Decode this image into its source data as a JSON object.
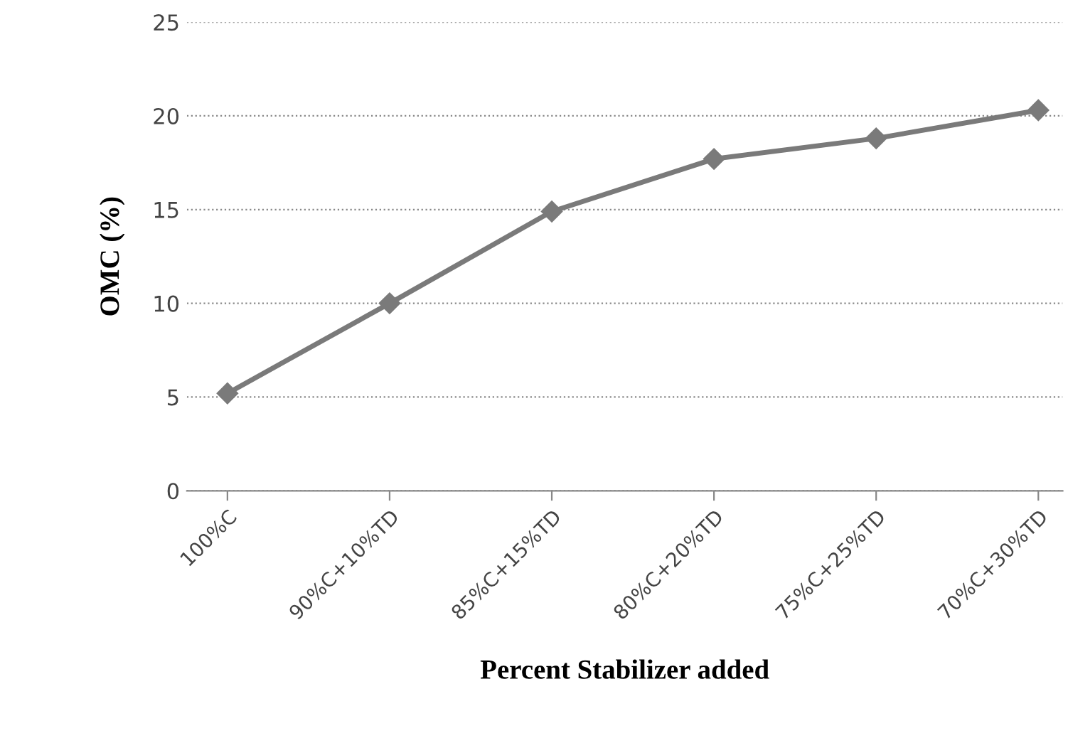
{
  "chart_data": {
    "type": "line",
    "xlabel": "Percent Stabilizer added",
    "ylabel": "OMC (%)",
    "categories": [
      "100%C",
      "90%C+10%TD",
      "85%C+15%TD",
      "80%C+20%TD",
      "75%C+25%TD",
      "70%C+30%TD"
    ],
    "series": [
      {
        "color": "#7a7a7a",
        "values": [
          5.2,
          10.0,
          14.9,
          17.7,
          18.8,
          20.3
        ]
      }
    ],
    "ylim": [
      0,
      25
    ],
    "yticks": [
      0,
      5,
      10,
      15,
      20,
      25
    ],
    "grid": "y",
    "marker": "diamond",
    "line_style": "solid",
    "legend": false
  }
}
